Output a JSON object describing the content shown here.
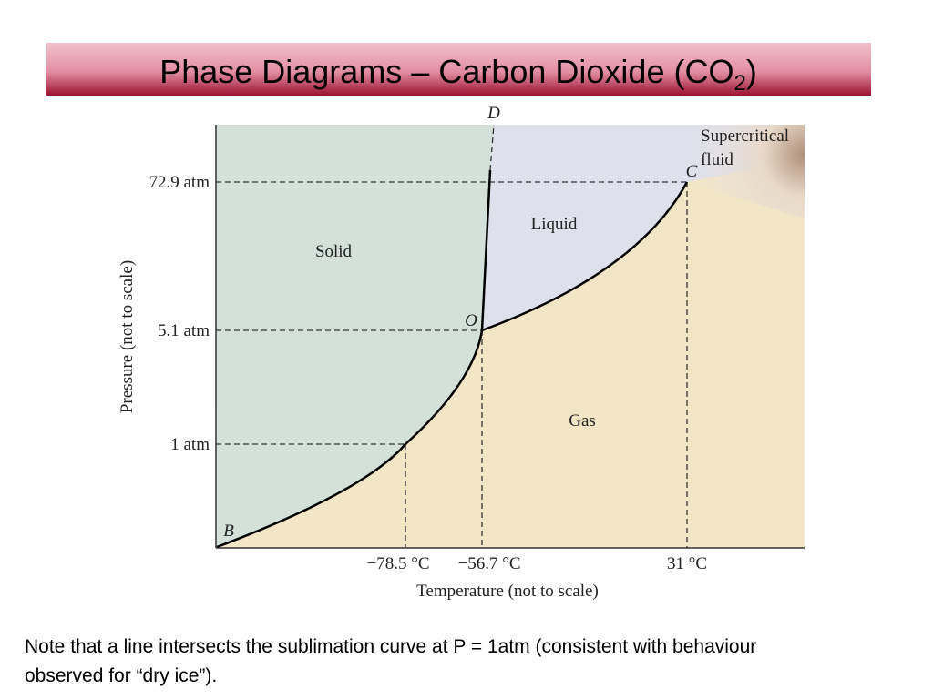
{
  "header": {
    "title": "Phase Diagrams – Carbon Dioxide (CO",
    "title_subscript": "2",
    "title_end": ")"
  },
  "diagram": {
    "regions": {
      "solid": "Solid",
      "liquid": "Liquid",
      "gas": "Gas",
      "supercritical": [
        "Supercritical",
        "fluid"
      ]
    },
    "points": {
      "b": "B",
      "o": "O",
      "c": "C",
      "d": "D"
    },
    "pressure_labels": [
      "72.9 atm",
      "5.1 atm",
      "1 atm"
    ],
    "temperature_labels": [
      "−78.5 °C",
      "−56.7 °C",
      "31 °C"
    ],
    "y_axis_label": "Pressure (not to scale)",
    "x_axis_label": "Temperature (not to scale)"
  },
  "note": "Note that a line intersects the sublimation curve at P = 1atm (consistent with behaviour observed for “dry ice”)."
}
